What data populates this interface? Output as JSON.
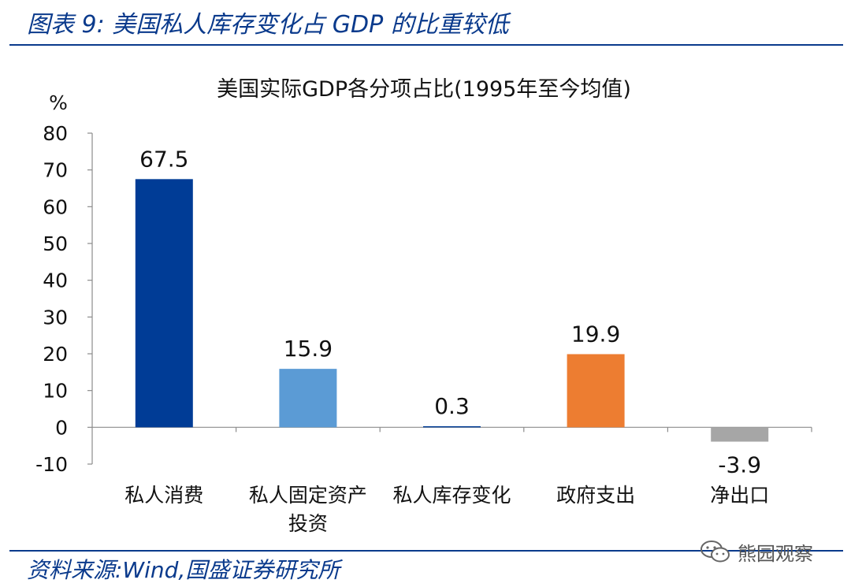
{
  "figure_title": "图表 9:  美国私人库存变化占 GDP 的比重较低",
  "source": "资料来源:Wind,国盛证券研究所",
  "watermark": "熊园观察",
  "chart_data": {
    "type": "bar",
    "title": "美国实际GDP各分项占比(1995年至今均值)",
    "ylabel": "%",
    "ylim": [
      -10,
      80
    ],
    "yticks": [
      80,
      70,
      60,
      50,
      40,
      30,
      20,
      10,
      0,
      -10
    ],
    "categories": [
      {
        "lines": [
          "私人消费"
        ]
      },
      {
        "lines": [
          "私人固定资产",
          "投资"
        ]
      },
      {
        "lines": [
          "私人库存变化"
        ]
      },
      {
        "lines": [
          "政府支出"
        ]
      },
      {
        "lines": [
          "净出口"
        ]
      }
    ],
    "values": [
      67.5,
      15.9,
      0.3,
      19.9,
      -3.9
    ],
    "value_labels": [
      "67.5",
      "15.9",
      "0.3",
      "19.9",
      "-3.9"
    ],
    "colors": [
      "#003c96",
      "#5b9bd5",
      "#003c96",
      "#ed7d31",
      "#a6a6a6"
    ]
  }
}
